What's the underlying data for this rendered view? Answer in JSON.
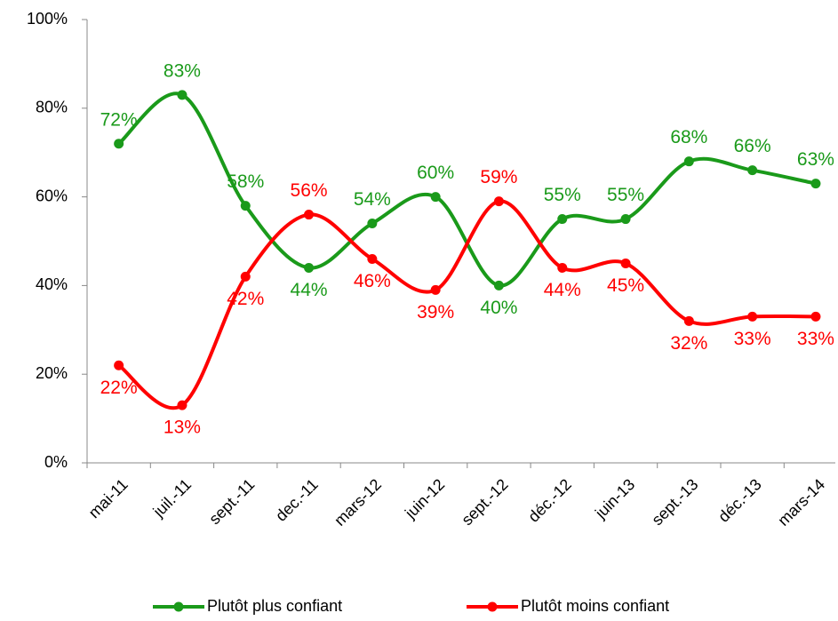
{
  "chart_data": {
    "type": "line",
    "categories": [
      "mai-11",
      "juil.-11",
      "sept.-11",
      "dec.-11",
      "mars-12",
      "juin-12",
      "sept.-12",
      "déc.-12",
      "juin-13",
      "sept.-13",
      "déc.-13",
      "mars-14"
    ],
    "series": [
      {
        "name": "Plutôt plus confiant",
        "color": "#1a9a1a",
        "values": [
          72,
          83,
          58,
          44,
          54,
          60,
          40,
          55,
          55,
          68,
          66,
          63
        ],
        "value_labels": [
          "72%",
          "83%",
          "58%",
          "44%",
          "54%",
          "60%",
          "40%",
          "55%",
          "55%",
          "68%",
          "66%",
          "63%"
        ]
      },
      {
        "name": "Plutôt moins confiant",
        "color": "#ff0000",
        "values": [
          22,
          13,
          42,
          56,
          46,
          39,
          59,
          44,
          45,
          32,
          33,
          33
        ],
        "value_labels": [
          "22%",
          "13%",
          "42%",
          "56%",
          "46%",
          "39%",
          "59%",
          "44%",
          "45%",
          "32%",
          "33%",
          "33%"
        ]
      }
    ],
    "ylim": [
      0,
      100
    ],
    "yticks": [
      {
        "value": 0,
        "label": "0%"
      },
      {
        "value": 20,
        "label": "20%"
      },
      {
        "value": 40,
        "label": "40%"
      },
      {
        "value": 60,
        "label": "60%"
      },
      {
        "value": 80,
        "label": "80%"
      },
      {
        "value": 100,
        "label": "100%"
      }
    ],
    "legend": "bottom"
  }
}
